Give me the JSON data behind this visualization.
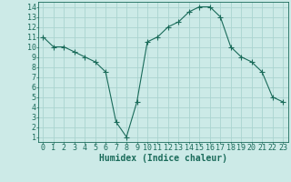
{
  "x": [
    0,
    1,
    2,
    3,
    4,
    5,
    6,
    7,
    8,
    9,
    10,
    11,
    12,
    13,
    14,
    15,
    16,
    17,
    18,
    19,
    20,
    21,
    22,
    23
  ],
  "y": [
    11,
    10,
    10,
    9.5,
    9,
    8.5,
    7.5,
    2.5,
    1,
    4.5,
    10.5,
    11,
    12,
    12.5,
    13.5,
    14,
    14,
    13,
    10,
    9,
    8.5,
    7.5,
    5,
    4.5
  ],
  "line_color": "#1a6b5a",
  "marker": "+",
  "markersize": 4,
  "bg_color": "#cceae7",
  "grid_color": "#aad4d0",
  "xlabel": "Humidex (Indice chaleur)",
  "xlim": [
    -0.5,
    23.5
  ],
  "ylim": [
    0.5,
    14.5
  ],
  "xtick_labels": [
    "0",
    "1",
    "2",
    "3",
    "4",
    "5",
    "6",
    "7",
    "8",
    "9",
    "10",
    "11",
    "12",
    "13",
    "14",
    "15",
    "16",
    "17",
    "18",
    "19",
    "20",
    "21",
    "22",
    "23"
  ],
  "ytick_labels": [
    "1",
    "2",
    "3",
    "4",
    "5",
    "6",
    "7",
    "8",
    "9",
    "10",
    "11",
    "12",
    "13",
    "14"
  ],
  "axis_color": "#1a6b5a",
  "tick_color": "#1a6b5a",
  "label_color": "#1a6b5a",
  "xlabel_fontsize": 7,
  "tick_fontsize": 6
}
